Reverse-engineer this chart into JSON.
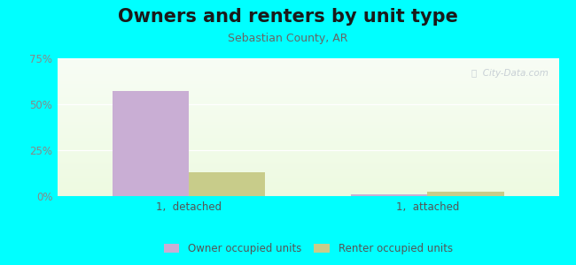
{
  "title": "Owners and renters by unit type",
  "subtitle": "Sebastian County, AR",
  "categories": [
    "1,  detached",
    "1,  attached"
  ],
  "owner_values": [
    57,
    0.8
  ],
  "renter_values": [
    13,
    2.5
  ],
  "owner_color": "#c9aed4",
  "renter_color": "#c8cc8a",
  "ylim": [
    0,
    75
  ],
  "yticks": [
    0,
    25,
    50,
    75
  ],
  "ytick_labels": [
    "0%",
    "25%",
    "50%",
    "75%"
  ],
  "background_outer": "#00ffff",
  "title_fontsize": 15,
  "subtitle_fontsize": 9,
  "bar_width": 0.32,
  "legend_labels": [
    "Owner occupied units",
    "Renter occupied units"
  ],
  "watermark": "Ⓢ  City-Data.com"
}
